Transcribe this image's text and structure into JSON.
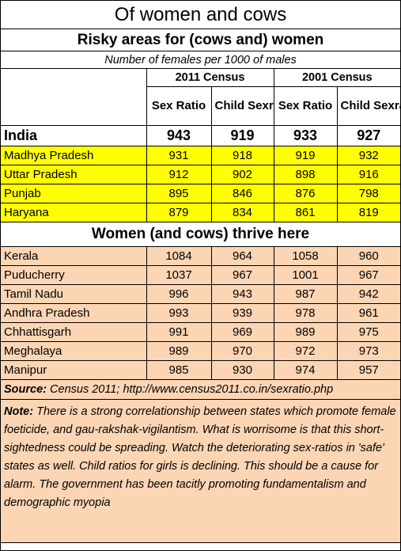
{
  "title": "Of women and cows",
  "risky_heading": "Risky areas for (cows and) women",
  "unit_note": "Number of females per 1000 of males",
  "census_2011": "2011 Census",
  "census_2001": "2001 Census",
  "col_sex_ratio": "Sex Ratio",
  "col_child": "Child Sexratio",
  "india": {
    "name": "India",
    "values": [
      "943",
      "919",
      "933",
      "927"
    ]
  },
  "risky_rows": [
    {
      "name": "Madhya Pradesh",
      "values": [
        "931",
        "918",
        "919",
        "932"
      ]
    },
    {
      "name": "Uttar Pradesh",
      "values": [
        "912",
        "902",
        "898",
        "916"
      ]
    },
    {
      "name": "Punjab",
      "values": [
        "895",
        "846",
        "876",
        "798"
      ]
    },
    {
      "name": "Haryana",
      "values": [
        "879",
        "834",
        "861",
        "819"
      ]
    }
  ],
  "thrive_heading": "Women (and cows) thrive here",
  "thrive_rows": [
    {
      "name": "Kerala",
      "values": [
        "1084",
        "964",
        "1058",
        "960"
      ]
    },
    {
      "name": "Puducherry",
      "values": [
        "1037",
        "967",
        "1001",
        "967"
      ]
    },
    {
      "name": "Tamil Nadu",
      "values": [
        "996",
        "943",
        "987",
        "942"
      ]
    },
    {
      "name": "Andhra Pradesh",
      "values": [
        "993",
        "939",
        "978",
        "961"
      ]
    },
    {
      "name": "Chhattisgarh",
      "values": [
        "991",
        "969",
        "989",
        "975"
      ]
    },
    {
      "name": "Meghalaya",
      "values": [
        "989",
        "970",
        "972",
        "973"
      ]
    },
    {
      "name": "Manipur",
      "values": [
        "985",
        "930",
        "974",
        "957"
      ]
    }
  ],
  "source": {
    "label": "Source:",
    "text": " Census 2011; http://www.census2011.co.in/sexratio.php"
  },
  "note": {
    "label": "Note:",
    "text": " There is a strong correlationship between  states which promote female foeticide, and gau-rakshak-vigilantism.  What is worrisome is that this short-sightedness could be spreading.  Watch the deteriorating sex-ratios in 'safe' states as well.  Child ratios for girls is declining.  This should be a cause for alarm.  The government has been tacitly promoting fundamentalism and demographic myopia"
  },
  "colors": {
    "risky_fill": "#ffff00",
    "thrive_fill": "#fcd5b4"
  }
}
